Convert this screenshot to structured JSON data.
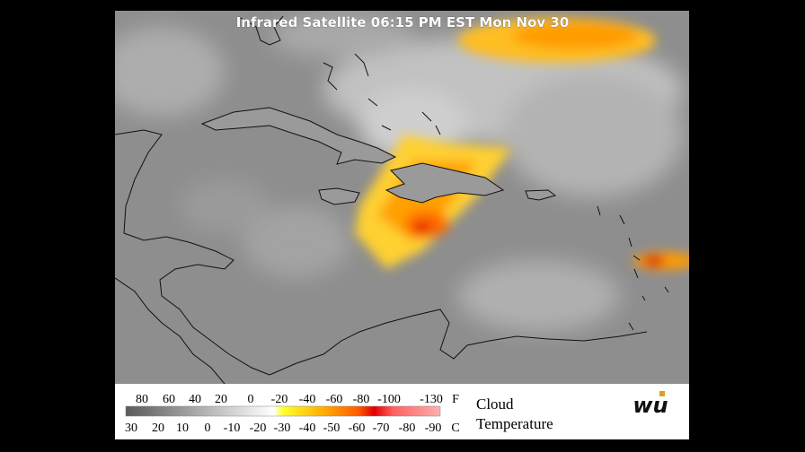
{
  "title": "Infrared Satellite 06:15 PM EST Mon Nov 30",
  "legend": {
    "fahrenheit": {
      "labels": [
        "80",
        "60",
        "40",
        "20",
        "0",
        "-20",
        "-40",
        "-60",
        "-80",
        "-100",
        "-130"
      ],
      "unit": "F"
    },
    "celsius": {
      "labels": [
        "30",
        "20",
        "10",
        "0",
        "-10",
        "-20",
        "-30",
        "-40",
        "-50",
        "-60",
        "-70",
        "-80",
        "-90"
      ],
      "unit": "C"
    },
    "caption": [
      "Cloud",
      "Temperature"
    ]
  },
  "logo": "wu"
}
